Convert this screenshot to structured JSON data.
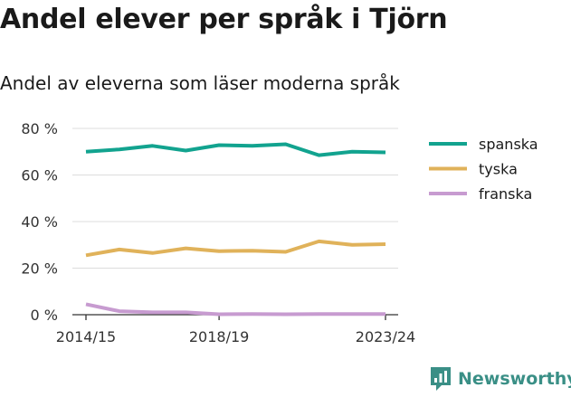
{
  "title": "Andel elever per språk i Tjörn",
  "subtitle": "Andel av eleverna som läser moderna språk",
  "brand": "Newsworthy",
  "chart_data": {
    "type": "line",
    "title": "Andel elever per språk i Tjörn",
    "subtitle": "Andel av eleverna som läser moderna språk",
    "xlabel": "",
    "ylabel": "",
    "x": [
      "2014/15",
      "2015/16",
      "2016/17",
      "2017/18",
      "2018/19",
      "2019/20",
      "2020/21",
      "2021/22",
      "2022/23",
      "2023/24"
    ],
    "x_tick_labels": [
      "2014/15",
      "2018/19",
      "2023/24"
    ],
    "y_ticks": [
      0,
      20,
      40,
      60,
      80
    ],
    "y_tick_labels": [
      "0 %",
      "20 %",
      "40 %",
      "60 %",
      "80 %"
    ],
    "ylim": [
      0,
      80
    ],
    "grid": true,
    "legend": "right",
    "series": [
      {
        "name": "spanska",
        "color": "#12a38f",
        "values": [
          70,
          71,
          72.5,
          70.5,
          72.8,
          72.5,
          73.2,
          68.5,
          70,
          69.7
        ]
      },
      {
        "name": "tyska",
        "color": "#e0b25a",
        "values": [
          25.5,
          28,
          26.5,
          28.5,
          27.3,
          27.5,
          27,
          31.5,
          30,
          30.3
        ]
      },
      {
        "name": "franska",
        "color": "#c79bd0",
        "values": [
          4.5,
          1.5,
          1,
          1,
          0.2,
          0.3,
          0.2,
          0.3,
          0.3,
          0.3
        ]
      }
    ]
  }
}
